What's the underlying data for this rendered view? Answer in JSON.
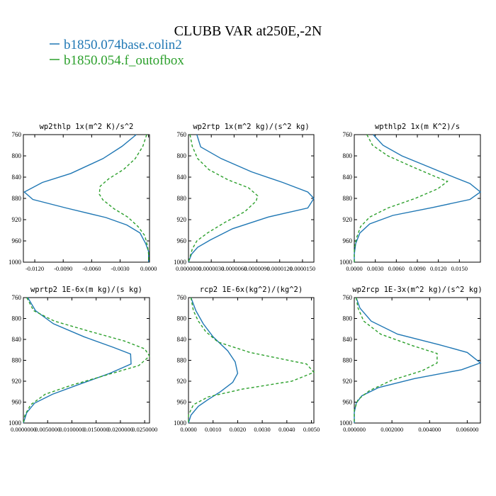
{
  "title": "CLUBB VAR at250E,-2N",
  "legend": [
    {
      "label": "b1850.074base.colin2",
      "color": "#1f77b4",
      "dash": ""
    },
    {
      "label": "b1850.054.f_outofbox",
      "color": "#2ca02c",
      "dash": "4,3"
    }
  ],
  "chart_data": [
    {
      "type": "line",
      "title": "wp2thlp  1x(m^2 K)/s^2",
      "xlim": [
        -0.0132,
        0.0001
      ],
      "ylim": [
        760,
        1000
      ],
      "y_inverted": true,
      "xticks": [
        -0.012,
        -0.009,
        -0.006,
        -0.003,
        0.0
      ],
      "xtick_labels": [
        "-0.0120",
        "-0.0090",
        "-0.0060",
        "-0.0030",
        "0.0000"
      ],
      "yticks": [
        760,
        800,
        840,
        880,
        920,
        960,
        1000
      ],
      "series": [
        {
          "name": "b1850.074base.colin2",
          "points": [
            [
              -0.0013,
              760
            ],
            [
              -0.0028,
              782
            ],
            [
              -0.0048,
              805
            ],
            [
              -0.0082,
              833
            ],
            [
              -0.0112,
              850
            ],
            [
              -0.0131,
              868
            ],
            [
              -0.0122,
              882
            ],
            [
              -0.0087,
              898
            ],
            [
              -0.0045,
              916
            ],
            [
              -0.0023,
              930
            ],
            [
              -0.0009,
              945
            ],
            [
              -0.0003,
              965
            ],
            [
              0.0,
              980
            ],
            [
              0.0,
              1000
            ]
          ]
        },
        {
          "name": "b1850.054.f_outofbox",
          "points": [
            [
              -0.0002,
              760
            ],
            [
              -0.0006,
              782
            ],
            [
              -0.0014,
              805
            ],
            [
              -0.0026,
              825
            ],
            [
              -0.0042,
              843
            ],
            [
              -0.0051,
              857
            ],
            [
              -0.0052,
              872
            ],
            [
              -0.0048,
              883
            ],
            [
              -0.0036,
              900
            ],
            [
              -0.0022,
              915
            ],
            [
              -0.0011,
              933
            ],
            [
              -0.0004,
              950
            ],
            [
              -0.0001,
              970
            ],
            [
              0.0,
              985
            ],
            [
              0.0,
              1000
            ]
          ]
        }
      ]
    },
    {
      "type": "line",
      "title": "wp2rtp  1x(m^2 kg)/(s^2 kg)",
      "xlim": [
        0.0,
        1.65e-05
      ],
      "ylim": [
        760,
        1000
      ],
      "y_inverted": true,
      "xticks": [
        0.0,
        3e-06,
        6e-06,
        9e-06,
        1.2e-05,
        1.5e-05
      ],
      "xtick_labels": [
        "0.0000000",
        "0.0000030",
        "0.0000060",
        "0.0000090",
        "0.0000120",
        "0.0000150"
      ],
      "yticks": [
        760,
        800,
        840,
        880,
        920,
        960,
        1000
      ],
      "series": [
        {
          "name": "b1850.074base.colin2",
          "points": [
            [
              1.1e-06,
              760
            ],
            [
              1.6e-06,
              783
            ],
            [
              4.3e-06,
              805
            ],
            [
              8.3e-06,
              830
            ],
            [
              1.24e-05,
              850
            ],
            [
              1.57e-05,
              868
            ],
            [
              1.65e-05,
              880
            ],
            [
              1.57e-05,
              898
            ],
            [
              1.05e-05,
              915
            ],
            [
              5.8e-06,
              937
            ],
            [
              2.9e-06,
              958
            ],
            [
              1.2e-06,
              972
            ],
            [
              4e-07,
              985
            ],
            [
              0.0,
              1000
            ]
          ]
        },
        {
          "name": "b1850.054.f_outofbox",
          "points": [
            [
              2e-07,
              760
            ],
            [
              5e-07,
              782
            ],
            [
              1.2e-06,
              805
            ],
            [
              2.7e-06,
              826
            ],
            [
              5.2e-06,
              845
            ],
            [
              7.9e-06,
              860
            ],
            [
              9.1e-06,
              875
            ],
            [
              8.9e-06,
              885
            ],
            [
              7.4e-06,
              905
            ],
            [
              4.8e-06,
              925
            ],
            [
              2.5e-06,
              945
            ],
            [
              1.1e-06,
              960
            ],
            [
              5e-07,
              975
            ],
            [
              0.0,
              1000
            ]
          ]
        }
      ]
    },
    {
      "type": "line",
      "title": "wpthlp2  1x(m K^2)/s",
      "xlim": [
        0.0,
        0.018
      ],
      "ylim": [
        760,
        1000
      ],
      "y_inverted": true,
      "xticks": [
        0.0,
        0.003,
        0.006,
        0.009,
        0.012,
        0.015
      ],
      "xtick_labels": [
        "0.0000",
        "0.0030",
        "0.0060",
        "0.0090",
        "0.0120",
        "0.0150"
      ],
      "yticks": [
        760,
        800,
        840,
        880,
        920,
        960,
        1000
      ],
      "series": [
        {
          "name": "b1850.074base.colin2",
          "points": [
            [
              0.0027,
              760
            ],
            [
              0.0041,
              780
            ],
            [
              0.0068,
              800
            ],
            [
              0.0105,
              820
            ],
            [
              0.0142,
              840
            ],
            [
              0.0165,
              852
            ],
            [
              0.018,
              868
            ],
            [
              0.0165,
              882
            ],
            [
              0.0112,
              897
            ],
            [
              0.0055,
              912
            ],
            [
              0.0022,
              928
            ],
            [
              0.0008,
              945
            ],
            [
              0.0002,
              965
            ],
            [
              0.0,
              985
            ],
            [
              0.0,
              1000
            ]
          ]
        },
        {
          "name": "b1850.054.f_outofbox",
          "points": [
            [
              0.0018,
              760
            ],
            [
              0.0026,
              780
            ],
            [
              0.0048,
              800
            ],
            [
              0.0082,
              820
            ],
            [
              0.0114,
              838
            ],
            [
              0.0133,
              848
            ],
            [
              0.0119,
              862
            ],
            [
              0.0087,
              880
            ],
            [
              0.0048,
              898
            ],
            [
              0.0022,
              915
            ],
            [
              0.0009,
              933
            ],
            [
              0.0003,
              955
            ],
            [
              0.0,
              975
            ],
            [
              0.0,
              1000
            ]
          ]
        }
      ]
    },
    {
      "type": "line",
      "title": "wprtp2  1E-6x(m kg)/(s kg)",
      "xlim": [
        0.0,
        0.026
      ],
      "ylim": [
        760,
        1000
      ],
      "y_inverted": true,
      "xticks": [
        0.0,
        0.005,
        0.01,
        0.015,
        0.02,
        0.025
      ],
      "xtick_labels": [
        "0.0000000",
        "0.0050000",
        "0.0100000",
        "0.0150000",
        "0.0200000",
        "0.0250000"
      ],
      "yticks": [
        760,
        800,
        840,
        880,
        920,
        960,
        1000
      ],
      "series": [
        {
          "name": "b1850.074base.colin2",
          "points": [
            [
              0.0009,
              760
            ],
            [
              0.0025,
              785
            ],
            [
              0.0062,
              810
            ],
            [
              0.0125,
              835
            ],
            [
              0.0185,
              855
            ],
            [
              0.0221,
              868
            ],
            [
              0.0222,
              887
            ],
            [
              0.0178,
              905
            ],
            [
              0.0118,
              925
            ],
            [
              0.006,
              945
            ],
            [
              0.0023,
              962
            ],
            [
              0.0007,
              980
            ],
            [
              0.0,
              1000
            ]
          ]
        },
        {
          "name": "b1850.054.f_outofbox",
          "points": [
            [
              0.0007,
              760
            ],
            [
              0.0021,
              785
            ],
            [
              0.0064,
              805
            ],
            [
              0.0138,
              825
            ],
            [
              0.0208,
              843
            ],
            [
              0.025,
              858
            ],
            [
              0.026,
              872
            ],
            [
              0.0238,
              890
            ],
            [
              0.0172,
              908
            ],
            [
              0.0098,
              928
            ],
            [
              0.0045,
              945
            ],
            [
              0.0015,
              965
            ],
            [
              0.0003,
              985
            ],
            [
              0.0,
              1000
            ]
          ]
        }
      ]
    },
    {
      "type": "line",
      "title": "rcp2  1E-6x(kg^2)/(kg^2)",
      "xlim": [
        0.0,
        0.0051
      ],
      "ylim": [
        760,
        1000
      ],
      "y_inverted": true,
      "xticks": [
        0.0,
        0.001,
        0.002,
        0.003,
        0.004,
        0.005
      ],
      "xtick_labels": [
        "0.0000",
        "0.0010",
        "0.0020",
        "0.0030",
        "0.0040",
        "0.0050"
      ],
      "yticks": [
        760,
        800,
        840,
        880,
        920,
        960,
        1000
      ],
      "series": [
        {
          "name": "b1850.074base.colin2",
          "points": [
            [
              0.0001,
              760
            ],
            [
              0.0003,
              785
            ],
            [
              0.0006,
              810
            ],
            [
              0.001,
              835
            ],
            [
              0.0016,
              862
            ],
            [
              0.0019,
              883
            ],
            [
              0.002,
              905
            ],
            [
              0.0018,
              922
            ],
            [
              0.0013,
              940
            ],
            [
              0.0008,
              955
            ],
            [
              0.0004,
              968
            ],
            [
              0.0001,
              985
            ],
            [
              0.0,
              1000
            ]
          ]
        },
        {
          "name": "b1850.054.f_outofbox",
          "points": [
            [
              0.0001,
              760
            ],
            [
              0.0002,
              785
            ],
            [
              0.0004,
              805
            ],
            [
              0.0007,
              825
            ],
            [
              0.0012,
              845
            ],
            [
              0.0025,
              865
            ],
            [
              0.0048,
              887
            ],
            [
              0.0051,
              903
            ],
            [
              0.0042,
              920
            ],
            [
              0.0022,
              935
            ],
            [
              0.0008,
              950
            ],
            [
              0.0002,
              965
            ],
            [
              0.0,
              985
            ],
            [
              0.0,
              1000
            ]
          ]
        }
      ]
    },
    {
      "type": "line",
      "title": "wp2rcp  1E-3x(m^2 kg)/(s^2 kg)",
      "xlim": [
        0.0,
        0.0067
      ],
      "ylim": [
        760,
        1000
      ],
      "y_inverted": true,
      "xticks": [
        0.0,
        0.002,
        0.004,
        0.006
      ],
      "xtick_labels": [
        "0.000000",
        "0.002000",
        "0.004000",
        "0.006000"
      ],
      "yticks": [
        760,
        800,
        840,
        880,
        920,
        960,
        1000
      ],
      "series": [
        {
          "name": "b1850.074base.colin2",
          "points": [
            [
              0.0001,
              760
            ],
            [
              0.0003,
              780
            ],
            [
              0.0009,
              805
            ],
            [
              0.0023,
              830
            ],
            [
              0.0045,
              850
            ],
            [
              0.006,
              865
            ],
            [
              0.0067,
              885
            ],
            [
              0.0057,
              898
            ],
            [
              0.0032,
              915
            ],
            [
              0.0013,
              932
            ],
            [
              0.0004,
              948
            ],
            [
              0.0001,
              962
            ],
            [
              0.0,
              980
            ],
            [
              0.0,
              1000
            ]
          ]
        },
        {
          "name": "b1850.054.f_outofbox",
          "points": [
            [
              0.0001,
              760
            ],
            [
              0.0002,
              780
            ],
            [
              0.0005,
              805
            ],
            [
              0.0014,
              830
            ],
            [
              0.0031,
              852
            ],
            [
              0.0044,
              867
            ],
            [
              0.0044,
              885
            ],
            [
              0.0036,
              900
            ],
            [
              0.002,
              918
            ],
            [
              0.0008,
              938
            ],
            [
              0.0002,
              955
            ],
            [
              0.0,
              975
            ],
            [
              0.0,
              1000
            ]
          ]
        }
      ]
    }
  ]
}
